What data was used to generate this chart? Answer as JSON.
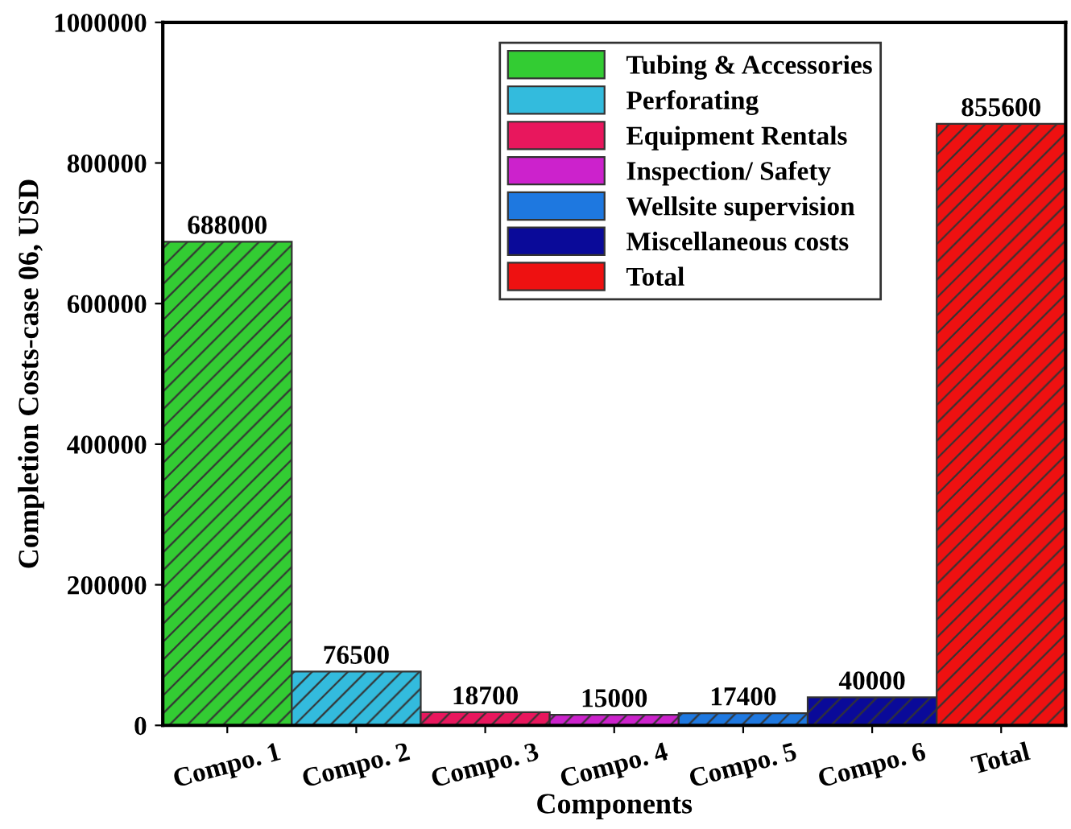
{
  "chart_data": {
    "type": "bar",
    "xlabel": "Components",
    "ylabel": "Completion Costs-case 06, USD",
    "categories": [
      "Compo. 1",
      "Compo. 2",
      "Compo. 3",
      "Compo. 4",
      "Compo. 5",
      "Compo. 6",
      "Total"
    ],
    "series": [
      {
        "name": "Tubing & Accessories",
        "color": "#33cc33",
        "values": [
          688000,
          null,
          null,
          null,
          null,
          null,
          null
        ]
      },
      {
        "name": "Perforating",
        "color": "#33bbdd",
        "values": [
          null,
          76500,
          null,
          null,
          null,
          null,
          null
        ]
      },
      {
        "name": "Equipment Rentals",
        "color": "#e8175d",
        "values": [
          null,
          null,
          18700,
          null,
          null,
          null,
          null
        ]
      },
      {
        "name": "Inspection/ Safety",
        "color": "#cc22cc",
        "values": [
          null,
          null,
          null,
          15000,
          null,
          null,
          null
        ]
      },
      {
        "name": "Wellsite supervision",
        "color": "#1e78e0",
        "values": [
          null,
          null,
          null,
          null,
          17400,
          null,
          null
        ]
      },
      {
        "name": "Miscellaneous costs",
        "color": "#0a0a99",
        "values": [
          null,
          null,
          null,
          null,
          null,
          40000,
          null
        ]
      },
      {
        "name": "Total",
        "color": "#ee1111",
        "values": [
          null,
          null,
          null,
          null,
          null,
          null,
          855600
        ]
      }
    ],
    "ylim": [
      0,
      1000000
    ],
    "yticks": [
      0,
      200000,
      400000,
      600000,
      800000,
      1000000
    ],
    "data_labels": true,
    "grid": false,
    "legend": "top right"
  }
}
